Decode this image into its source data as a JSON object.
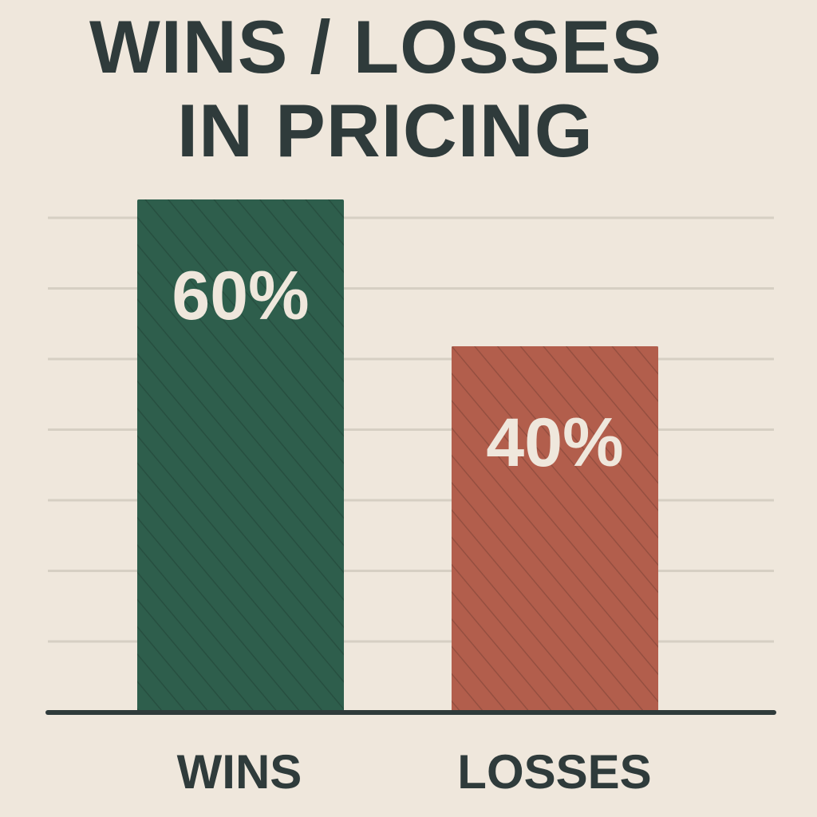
{
  "chart_data": {
    "type": "bar",
    "title": [
      "WINS / LOSSES",
      "IN PRICING"
    ],
    "categories": [
      "WINS",
      "LOSSES"
    ],
    "values": [
      60,
      40
    ],
    "data_labels": [
      "60%",
      "40%"
    ],
    "colors": [
      "#2e5e4c",
      "#b25e4c"
    ],
    "xlabel": "",
    "ylabel": "",
    "ylim": [
      0,
      60
    ],
    "grid": true,
    "legend": "none"
  }
}
